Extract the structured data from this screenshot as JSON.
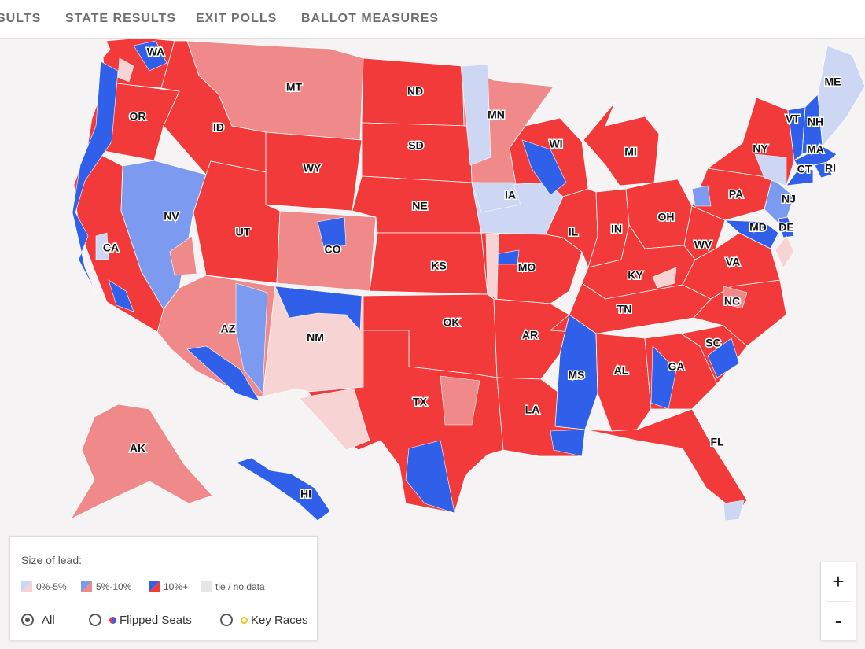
{
  "nav": {
    "tabs": [
      "SULTS",
      "STATE RESULTS",
      "EXIT POLLS",
      "BALLOT MEASURES"
    ]
  },
  "colors": {
    "background": "#f5f3f4",
    "rep_strong": "#f23a3a",
    "rep_mid": "#f08a8a",
    "rep_light": "#f8d3d3",
    "dem_strong": "#3060ea",
    "dem_mid": "#7c9aef",
    "dem_light": "#cdd7f4",
    "tie": "#e6e6e6"
  },
  "map": {
    "state_labels": [
      "WA",
      "OR",
      "CA",
      "NV",
      "ID",
      "MT",
      "WY",
      "UT",
      "CO",
      "AZ",
      "NM",
      "ND",
      "SD",
      "NE",
      "KS",
      "OK",
      "TX",
      "MN",
      "IA",
      "MO",
      "AR",
      "LA",
      "WI",
      "IL",
      "MI",
      "IN",
      "OH",
      "KY",
      "TN",
      "MS",
      "AL",
      "GA",
      "FL",
      "SC",
      "NC",
      "VA",
      "WV",
      "PA",
      "NY",
      "VT",
      "NH",
      "ME",
      "MA",
      "CT",
      "RI",
      "NJ",
      "MD",
      "DE",
      "AK",
      "HI"
    ]
  },
  "legend": {
    "title": "Size of lead:",
    "swatches": [
      {
        "label": "0%-5%",
        "dem": "#cdd7f4",
        "rep": "#f8d3d3"
      },
      {
        "label": "5%-10%",
        "dem": "#7c9aef",
        "rep": "#f08a8a"
      },
      {
        "label": "10%+",
        "dem": "#3060ea",
        "rep": "#f23a3a"
      },
      {
        "label": "tie / no data",
        "dem": "#e6e6e6",
        "rep": "#e6e6e6"
      }
    ],
    "filters": [
      {
        "label": "All",
        "selected": true
      },
      {
        "label": "Flipped Seats",
        "selected": false
      },
      {
        "label": "Key Races",
        "selected": false
      }
    ]
  },
  "zoom": {
    "in_label": "+",
    "out_label": "-"
  }
}
